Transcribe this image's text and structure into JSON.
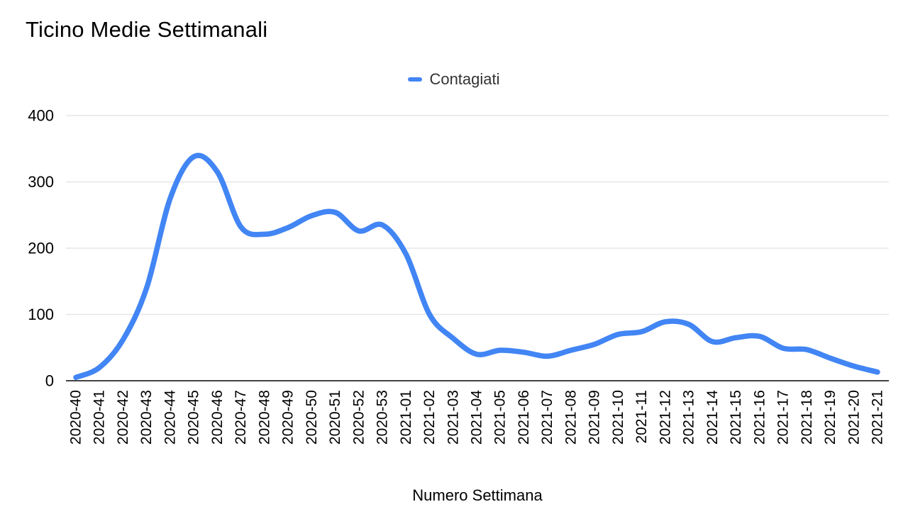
{
  "chart_data": {
    "type": "line",
    "smooth": true,
    "title": "Ticino Medie Settimanali",
    "xlabel": "Numero Settimana",
    "ylabel": "",
    "ylim": [
      0,
      400
    ],
    "y_ticks": [
      0,
      100,
      200,
      300,
      400
    ],
    "grid": true,
    "legend_position": "top-center",
    "categories": [
      "2020-40",
      "2020-41",
      "2020-42",
      "2020-43",
      "2020-44",
      "2020-45",
      "2020-46",
      "2020-47",
      "2020-48",
      "2020-49",
      "2020-50",
      "2020-51",
      "2020-52",
      "2020-53",
      "2021-01",
      "2021-02",
      "2021-03",
      "2021-04",
      "2021-05",
      "2021-06",
      "2021-07",
      "2021-08",
      "2021-09",
      "2021-10",
      "2021-11",
      "2021-12",
      "2021-13",
      "2021-14",
      "2021-15",
      "2021-16",
      "2021-17",
      "2021-18",
      "2021-19",
      "2021-20",
      "2021-21"
    ],
    "series": [
      {
        "name": "Contagiati",
        "color": "#4285f4",
        "values": [
          5,
          20,
          62,
          140,
          275,
          338,
          315,
          232,
          221,
          231,
          249,
          254,
          226,
          235,
          191,
          100,
          64,
          40,
          46,
          43,
          37,
          46,
          55,
          70,
          74,
          89,
          85,
          59,
          65,
          67,
          49,
          47,
          34,
          22,
          13
        ]
      }
    ]
  },
  "colors": {
    "line": "#4285f4",
    "gridline": "#e6e6e6",
    "axis_line": "#424242",
    "tick_text": "#000000",
    "title_text": "#000000",
    "legend_text": "#333333"
  }
}
